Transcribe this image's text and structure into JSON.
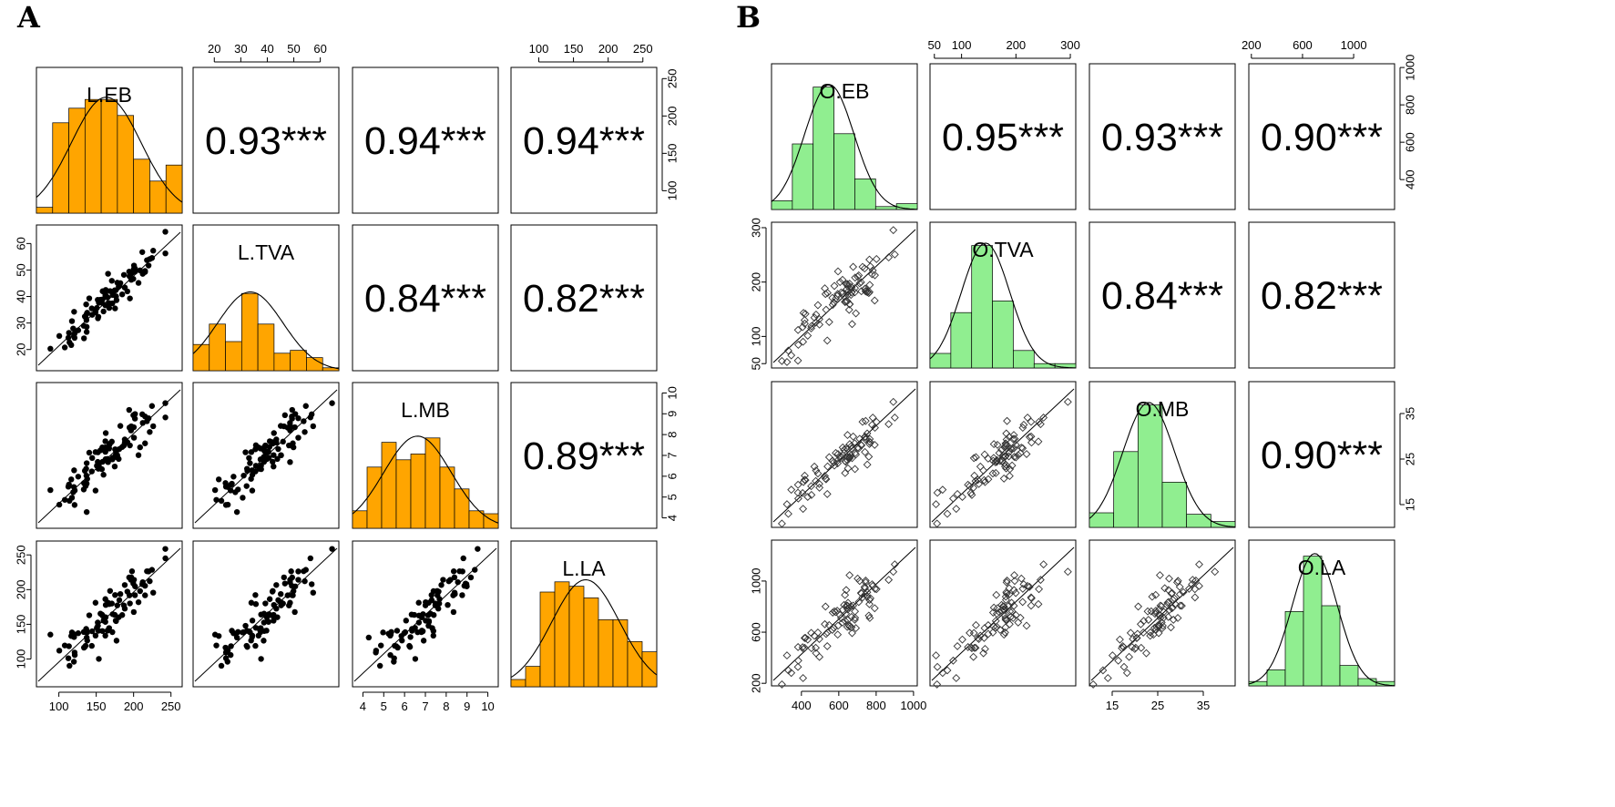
{
  "chart_data": [
    {
      "type": "scatter-matrix",
      "panel_label": "A",
      "variables": [
        "L.EB",
        "L.TVA",
        "L.MB",
        "L.LA"
      ],
      "axes": [
        {
          "range": [
            70,
            265
          ],
          "ticks": [
            100,
            150,
            200,
            250
          ]
        },
        {
          "range": [
            12,
            67
          ],
          "ticks": [
            20,
            30,
            40,
            50,
            60
          ]
        },
        {
          "range": [
            3.5,
            10.5
          ],
          "ticks": [
            4,
            5,
            6,
            7,
            8,
            9,
            10
          ]
        },
        {
          "range": [
            60,
            270
          ],
          "ticks": [
            100,
            150,
            200,
            250
          ]
        }
      ],
      "correlations": [
        {
          "row": 0,
          "col": 1,
          "label": "0.93***"
        },
        {
          "row": 0,
          "col": 2,
          "label": "0.94***"
        },
        {
          "row": 0,
          "col": 3,
          "label": "0.94***"
        },
        {
          "row": 1,
          "col": 2,
          "label": "0.84***"
        },
        {
          "row": 1,
          "col": 3,
          "label": "0.82***"
        },
        {
          "row": 2,
          "col": 3,
          "label": "0.89***"
        }
      ],
      "histograms": [
        [
          0.04,
          0.62,
          0.72,
          0.78,
          0.78,
          0.67,
          0.37,
          0.22,
          0.33
        ],
        [
          0.18,
          0.32,
          0.2,
          0.53,
          0.32,
          0.12,
          0.14,
          0.09,
          0.02
        ],
        [
          0.12,
          0.42,
          0.59,
          0.47,
          0.51,
          0.62,
          0.42,
          0.27,
          0.12,
          0.1
        ],
        [
          0.05,
          0.14,
          0.65,
          0.72,
          0.69,
          0.61,
          0.46,
          0.46,
          0.31,
          0.24
        ]
      ],
      "scatter_samples": 90,
      "marker": "filled-circle",
      "bar_color": "#ffa500"
    },
    {
      "type": "scatter-matrix",
      "panel_label": "B",
      "variables": [
        "O.EB",
        "O.TVA",
        "O.MB",
        "O.LA"
      ],
      "axes": [
        {
          "range": [
            240,
            1020
          ],
          "ticks": [
            400,
            600,
            800,
            1000
          ]
        },
        {
          "range": [
            42,
            310
          ],
          "ticks": [
            50,
            100,
            200,
            300
          ]
        },
        {
          "range": [
            10,
            42
          ],
          "ticks": [
            15,
            25,
            35
          ]
        },
        {
          "range": [
            180,
            1320
          ],
          "ticks": [
            200,
            600,
            1000
          ]
        }
      ],
      "top_tick_labels": [
        [
          50,
          100,
          200,
          300
        ],
        [
          200,
          600,
          1000
        ]
      ],
      "right_tick_labels": [
        [
          400,
          600,
          800,
          1000
        ],
        [
          15,
          25,
          35
        ]
      ],
      "correlations": [
        {
          "row": 0,
          "col": 1,
          "label": "0.95***"
        },
        {
          "row": 0,
          "col": 2,
          "label": "0.93***"
        },
        {
          "row": 0,
          "col": 3,
          "label": "0.90***"
        },
        {
          "row": 1,
          "col": 2,
          "label": "0.84***"
        },
        {
          "row": 1,
          "col": 3,
          "label": "0.82***"
        },
        {
          "row": 2,
          "col": 3,
          "label": "0.90***"
        }
      ],
      "histograms": [
        [
          0.06,
          0.45,
          0.84,
          0.52,
          0.21,
          0.02,
          0.04
        ],
        [
          0.1,
          0.38,
          0.84,
          0.46,
          0.12,
          0.03,
          0.03
        ],
        [
          0.1,
          0.52,
          0.84,
          0.31,
          0.09,
          0.04
        ],
        [
          0.03,
          0.11,
          0.51,
          0.89,
          0.55,
          0.14,
          0.05,
          0.03
        ]
      ],
      "scatter_samples": 90,
      "marker": "open-diamond",
      "bar_color": "#90ee90"
    }
  ]
}
